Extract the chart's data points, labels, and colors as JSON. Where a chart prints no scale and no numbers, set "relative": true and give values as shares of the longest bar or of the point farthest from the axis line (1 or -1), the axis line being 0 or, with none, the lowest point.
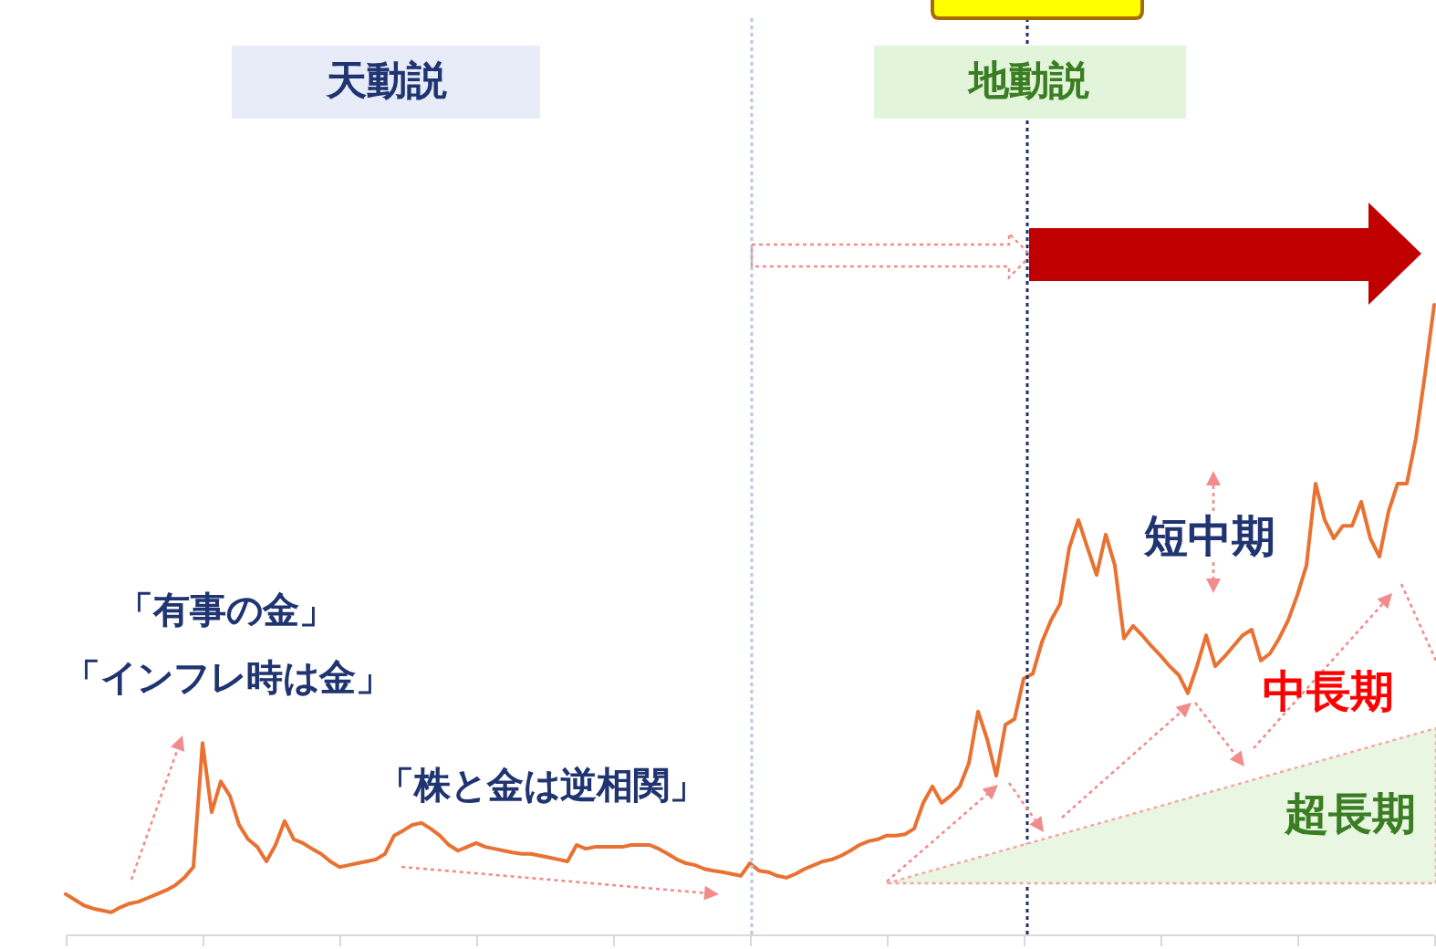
{
  "chart_data": {
    "type": "line",
    "relative": true,
    "categories": [
      null,
      null,
      null,
      null,
      null,
      null,
      null,
      null,
      null,
      null,
      null,
      null,
      null,
      null,
      null,
      null,
      null,
      null,
      null,
      null,
      null,
      null,
      null,
      null,
      null,
      null,
      null,
      null,
      null,
      null,
      null,
      null,
      null,
      null,
      null,
      null,
      null,
      null,
      null,
      null,
      null,
      null,
      null,
      null,
      null,
      null,
      null,
      null,
      null,
      null,
      null,
      null,
      null,
      null,
      null,
      null,
      null,
      null,
      null,
      null,
      null,
      null,
      null,
      null,
      null,
      null,
      null,
      null,
      null,
      null,
      null,
      null,
      null,
      null,
      null,
      null,
      null,
      null,
      null,
      null,
      null,
      null,
      null,
      null,
      null,
      null,
      null,
      null,
      null,
      null,
      null,
      null,
      null,
      null,
      null,
      null,
      null,
      null,
      null,
      null,
      null,
      null,
      null,
      null,
      null,
      null,
      null,
      null,
      null,
      null,
      null,
      null,
      null,
      null,
      null,
      null,
      null,
      null,
      null,
      null,
      null,
      null,
      null,
      null,
      null,
      null,
      null,
      null,
      null,
      null,
      null,
      null,
      null,
      null,
      null,
      null,
      null,
      null,
      null,
      null,
      null,
      null,
      null,
      null,
      null,
      null,
      null,
      null,
      null,
      null,
      null
    ],
    "series": [
      {
        "color": "#e97132",
        "values": [
          0.064,
          0.055,
          0.046,
          0.041,
          0.038,
          0.035,
          0.043,
          0.049,
          0.052,
          0.058,
          0.064,
          0.07,
          0.078,
          0.09,
          0.107,
          0.304,
          0.194,
          0.243,
          0.22,
          0.174,
          0.151,
          0.139,
          0.116,
          0.142,
          0.18,
          0.151,
          0.145,
          0.136,
          0.128,
          0.116,
          0.107,
          0.11,
          0.113,
          0.116,
          0.119,
          0.128,
          0.157,
          0.165,
          0.174,
          0.177,
          0.168,
          0.157,
          0.142,
          0.133,
          0.139,
          0.145,
          0.139,
          0.136,
          0.133,
          0.13,
          0.128,
          0.128,
          0.125,
          0.122,
          0.119,
          0.116,
          0.142,
          0.136,
          0.139,
          0.139,
          0.139,
          0.139,
          0.142,
          0.142,
          0.142,
          0.136,
          0.128,
          0.119,
          0.113,
          0.11,
          0.104,
          0.101,
          0.099,
          0.096,
          0.093,
          0.113,
          0.101,
          0.099,
          0.093,
          0.09,
          0.096,
          0.104,
          0.11,
          0.116,
          0.119,
          0.125,
          0.133,
          0.142,
          0.148,
          0.151,
          0.157,
          0.157,
          0.159,
          0.168,
          0.209,
          0.235,
          0.209,
          0.22,
          0.235,
          0.272,
          0.354,
          0.31,
          0.252,
          0.333,
          0.342,
          0.406,
          0.414,
          0.464,
          0.499,
          0.525,
          0.614,
          0.658,
          0.614,
          0.571,
          0.635,
          0.586,
          0.47,
          0.49,
          0.475,
          0.458,
          0.443,
          0.426,
          0.412,
          0.383,
          0.426,
          0.475,
          0.426,
          0.441,
          0.458,
          0.475,
          0.484,
          0.435,
          0.446,
          0.47,
          0.499,
          0.539,
          0.586,
          0.716,
          0.658,
          0.629,
          0.649,
          0.649,
          0.687,
          0.629,
          0.6,
          0.672,
          0.716,
          0.716,
          0.788,
          0.89,
          1.0
        ]
      }
    ],
    "annotations": [
      "天動説",
      "地動説",
      "「有事の金」",
      "「インフレ時は金」",
      "「株と金は逆相関」",
      "短中期",
      "中長期",
      "超長期"
    ]
  }
}
